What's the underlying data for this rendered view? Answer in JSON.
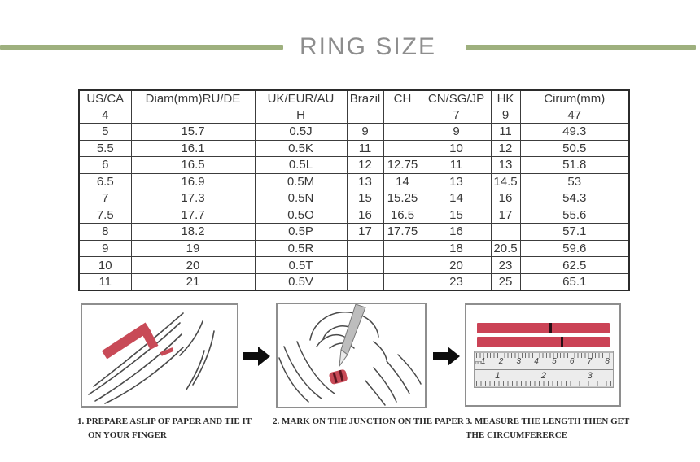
{
  "title": "RING SIZE",
  "colors": {
    "divider_green": "#9eb07e",
    "title_gray": "#8d8d8d",
    "paper_strip_red": "#cb4356",
    "arrow_black": "#0d0d0d",
    "table_border": "#2b2b2b"
  },
  "size_table": {
    "headers": [
      "US/CA",
      "Diam(mm)RU/DE",
      "UK/EUR/AU",
      "Brazil",
      "CH",
      "CN/SG/JP",
      "HK",
      "Cirum(mm)"
    ],
    "rows": [
      [
        "4",
        "",
        "H",
        "",
        "",
        "7",
        "9",
        "47"
      ],
      [
        "5",
        "15.7",
        "0.5J",
        "9",
        "",
        "9",
        "11",
        "49.3"
      ],
      [
        "5.5",
        "16.1",
        "0.5K",
        "11",
        "",
        "10",
        "12",
        "50.5"
      ],
      [
        "6",
        "16.5",
        "0.5L",
        "12",
        "12.75",
        "11",
        "13",
        "51.8"
      ],
      [
        "6.5",
        "16.9",
        "0.5M",
        "13",
        "14",
        "13",
        "14.5",
        "53"
      ],
      [
        "7",
        "17.3",
        "0.5N",
        "15",
        "15.25",
        "14",
        "16",
        "54.3"
      ],
      [
        "7.5",
        "17.7",
        "0.5O",
        "16",
        "16.5",
        "15",
        "17",
        "55.6"
      ],
      [
        "8",
        "18.2",
        "0.5P",
        "17",
        "17.75",
        "16",
        "",
        "57.1"
      ],
      [
        "9",
        "19",
        "0.5R",
        "",
        "",
        "18",
        "20.5",
        "59.6"
      ],
      [
        "10",
        "20",
        "0.5T",
        "",
        "",
        "20",
        "23",
        "62.5"
      ],
      [
        "11",
        "21",
        "0.5V",
        "",
        "",
        "23",
        "25",
        "65.1"
      ]
    ]
  },
  "steps": [
    {
      "caption": "1. PREPARE ASLIP OF PAPER AND TIE IT ON YOUR FINGER"
    },
    {
      "caption": "2. MARK ON THE JUNCTION ON THE PAPER"
    },
    {
      "caption": "3. MEASURE THE LENGTH THEN GET THE CIRCUMFERERCE"
    }
  ],
  "ruler": {
    "unit_label": "mm",
    "cm_ticks": [
      "1",
      "2",
      "3",
      "4",
      "5",
      "6",
      "7",
      "8"
    ],
    "inch_ticks": [
      "1",
      "2",
      "3"
    ]
  }
}
